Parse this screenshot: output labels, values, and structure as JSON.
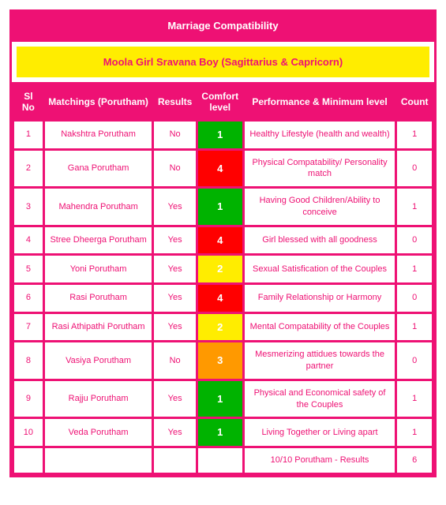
{
  "header": {
    "title": "Marriage Compatibility",
    "subtitle": "Moola Girl Sravana Boy (Sagittarius & Capricorn)"
  },
  "columns": {
    "sl": "Sl No",
    "matchings": "Matchings (Porutham)",
    "results": "Results",
    "comfort": "Comfort level",
    "performance": "Performance & Minimum level",
    "count": "Count"
  },
  "rows": [
    {
      "sl": "1",
      "matching": "Nakshtra Porutham",
      "result": "No",
      "comfort": "1",
      "comfort_class": "c1",
      "performance": "Healthy Lifestyle (health and wealth)",
      "count": "1"
    },
    {
      "sl": "2",
      "matching": "Gana Porutham",
      "result": "No",
      "comfort": "4",
      "comfort_class": "c4",
      "performance": "Physical Compatability/ Personality match",
      "count": "0"
    },
    {
      "sl": "3",
      "matching": "Mahendra Porutham",
      "result": "Yes",
      "comfort": "1",
      "comfort_class": "c1",
      "performance": "Having Good Children/Ability to conceive",
      "count": "1"
    },
    {
      "sl": "4",
      "matching": "Stree Dheerga Porutham",
      "result": "Yes",
      "comfort": "4",
      "comfort_class": "c4",
      "performance": "Girl blessed with all goodness",
      "count": "0"
    },
    {
      "sl": "5",
      "matching": "Yoni Porutham",
      "result": "Yes",
      "comfort": "2",
      "comfort_class": "c2",
      "performance": "Sexual Satisfication of the Couples",
      "count": "1"
    },
    {
      "sl": "6",
      "matching": "Rasi Porutham",
      "result": "Yes",
      "comfort": "4",
      "comfort_class": "c4",
      "performance": "Family Relationship or Harmony",
      "count": "0"
    },
    {
      "sl": "7",
      "matching": "Rasi Athipathi Porutham",
      "result": "Yes",
      "comfort": "2",
      "comfort_class": "c2",
      "performance": "Mental Compatability of the Couples",
      "count": "1"
    },
    {
      "sl": "8",
      "matching": "Vasiya Porutham",
      "result": "No",
      "comfort": "3",
      "comfort_class": "c3",
      "performance": "Mesmerizing attidues towards the partner",
      "count": "0"
    },
    {
      "sl": "9",
      "matching": "Rajju Porutham",
      "result": "Yes",
      "comfort": "1",
      "comfort_class": "c1",
      "performance": "Physical and Economical safety of the Couples",
      "count": "1"
    },
    {
      "sl": "10",
      "matching": "Veda Porutham",
      "result": "Yes",
      "comfort": "1",
      "comfort_class": "c1",
      "performance": "Living Together or Living apart",
      "count": "1"
    }
  ],
  "footer": {
    "performance": "10/10 Porutham - Results",
    "count": "6"
  },
  "colors": {
    "brand": "#ee1174",
    "yellow": "#ffed00",
    "green": "#00b300",
    "orange": "#ff9900",
    "red": "#ff0000",
    "white": "#ffffff"
  }
}
